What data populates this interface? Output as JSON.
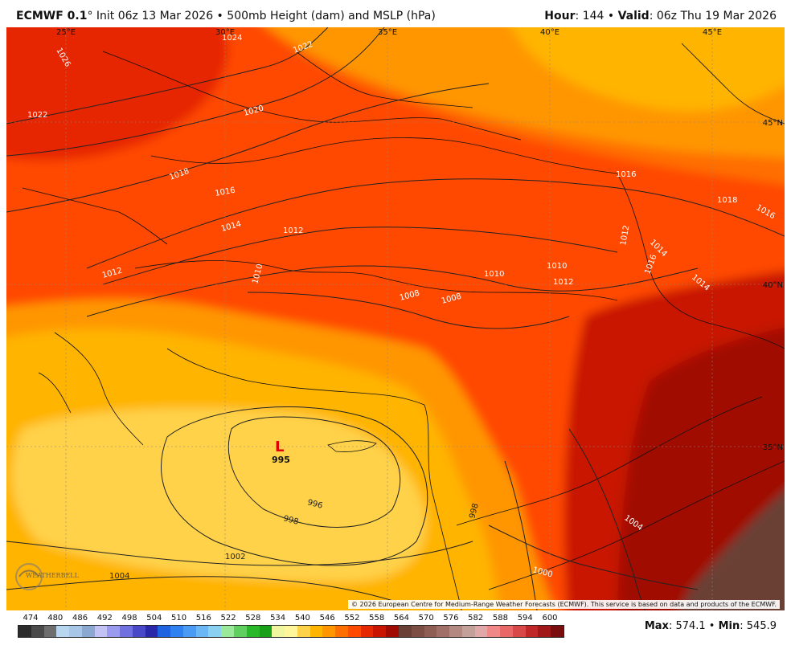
{
  "header": {
    "model": "ECMWF 0.1",
    "degree": "°",
    "init": " Init 06z 13 Mar 2026",
    "sep": " • ",
    "product": "500mb Height (dam) and MSLP (hPa)",
    "hour_label": "Hour",
    "hour_value": ": 144 • ",
    "valid_label": "Valid",
    "valid_value": ": 06z Thu 19 Mar 2026"
  },
  "map": {
    "lon_labels": [
      "25°E",
      "30°E",
      "35°E",
      "40°E",
      "45°E"
    ],
    "lat_labels": [
      "45°N",
      "40°N",
      "35°N"
    ],
    "isobars": [
      "1026",
      "1024",
      "1022",
      "1022",
      "1020",
      "1018",
      "1016",
      "1014",
      "1012",
      "1012",
      "1010",
      "1008",
      "1008",
      "1010",
      "1012",
      "1010",
      "1012",
      "1014",
      "1016",
      "1018",
      "1016",
      "1014",
      "1016",
      "996",
      "998",
      "998",
      "1002",
      "1004",
      "1004",
      "1000"
    ],
    "low": {
      "letter": "L",
      "value": "995"
    },
    "copyright": "© 2026 European Centre for Medium-Range Weather Forecasts (ECMWF). This service is based on data and products of the ECMWF.",
    "logo": "WEATHERBELL"
  },
  "legend": {
    "ticks": [
      "474",
      "480",
      "486",
      "492",
      "498",
      "504",
      "510",
      "516",
      "522",
      "528",
      "534",
      "540",
      "546",
      "552",
      "558",
      "564",
      "570",
      "576",
      "582",
      "588",
      "594",
      "600"
    ],
    "colors": [
      "#2b2b2b",
      "#4a4a4a",
      "#6e6e6e",
      "#b8d6f0",
      "#a8c7e8",
      "#8aa8d0",
      "#c2c2f5",
      "#9a9af0",
      "#7070e0",
      "#4848c8",
      "#2828a8",
      "#1e64e0",
      "#2f80f0",
      "#4b9bf5",
      "#6bb6f5",
      "#8ad0f0",
      "#9ae89a",
      "#5fd05f",
      "#28b828",
      "#18a018",
      "#f0f5a0",
      "#fff59a",
      "#ffd24a",
      "#ffb400",
      "#ff9600",
      "#ff6e00",
      "#ff4a00",
      "#e62800",
      "#c81400",
      "#a00a00",
      "#6a4036",
      "#7c4e44",
      "#8e5e54",
      "#a07068",
      "#b28880",
      "#c4a09a",
      "#e0a8a8",
      "#f08888",
      "#e86868",
      "#d84848",
      "#c02828",
      "#a01818",
      "#7a0e0e"
    ],
    "max_label": "Max",
    "max_value": ": 574.1 • ",
    "min_label": "Min",
    "min_value": ": 545.9"
  }
}
